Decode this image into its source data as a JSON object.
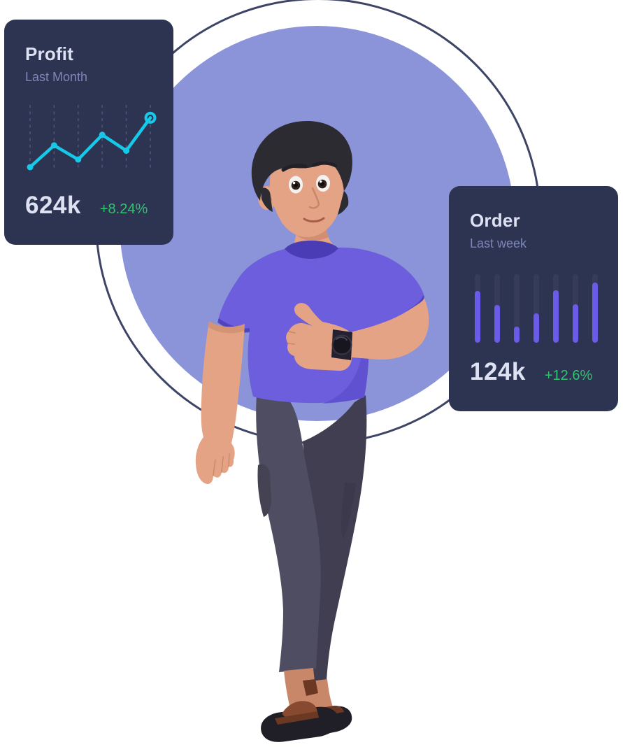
{
  "illustration": {
    "name": "man-thumbs-up",
    "subject": "3D man in purple t-shirt and dark joggers with brown sandals and wristwatch giving a thumbs up"
  },
  "cards": [
    {
      "id": "profit",
      "title": "Profit",
      "subtitle": "Last Month",
      "value": "624k",
      "change": "+8.24%"
    },
    {
      "id": "order",
      "title": "Order",
      "subtitle": "Last week",
      "value": "124k",
      "change": "+12.6%"
    }
  ],
  "chart_data": [
    {
      "type": "line",
      "title": "Profit",
      "series_label": "Last Month",
      "x": [
        1,
        2,
        3,
        4,
        5,
        6
      ],
      "values": [
        6,
        43,
        19,
        61,
        34,
        90
      ],
      "value_range": [
        0,
        100
      ],
      "grid": "vertical-dashed",
      "legend": "none",
      "line_color": "#17c9e8",
      "marker": "dot",
      "last_marker": "open-ring",
      "summary_value": "624k",
      "change": "+8.24%"
    },
    {
      "type": "bar",
      "title": "Order",
      "series_label": "Last week",
      "categories": [
        "1",
        "2",
        "3",
        "4",
        "5",
        "6",
        "7"
      ],
      "values": [
        76,
        55,
        23,
        43,
        77,
        56,
        88
      ],
      "value_range": [
        0,
        100
      ],
      "legend": "none",
      "bar_color": "#6a5ce8",
      "track_color": "#353b59",
      "summary_value": "124k",
      "change": "+12.6%"
    }
  ],
  "colors": {
    "page_bg": "#ffffff",
    "card_bg": "#2d3451",
    "card_title": "#dde1f2",
    "card_subtitle": "#7d86b8",
    "card_value": "#dde1f2",
    "delta_green": "#31c36f",
    "line_cyan": "#17c9e8",
    "grid_dash": "#4d5478",
    "bar_purple": "#6a5ce8",
    "bar_track": "#353b59",
    "circle_fill": "#8b94d8",
    "ring_stroke": "#3d4466"
  }
}
